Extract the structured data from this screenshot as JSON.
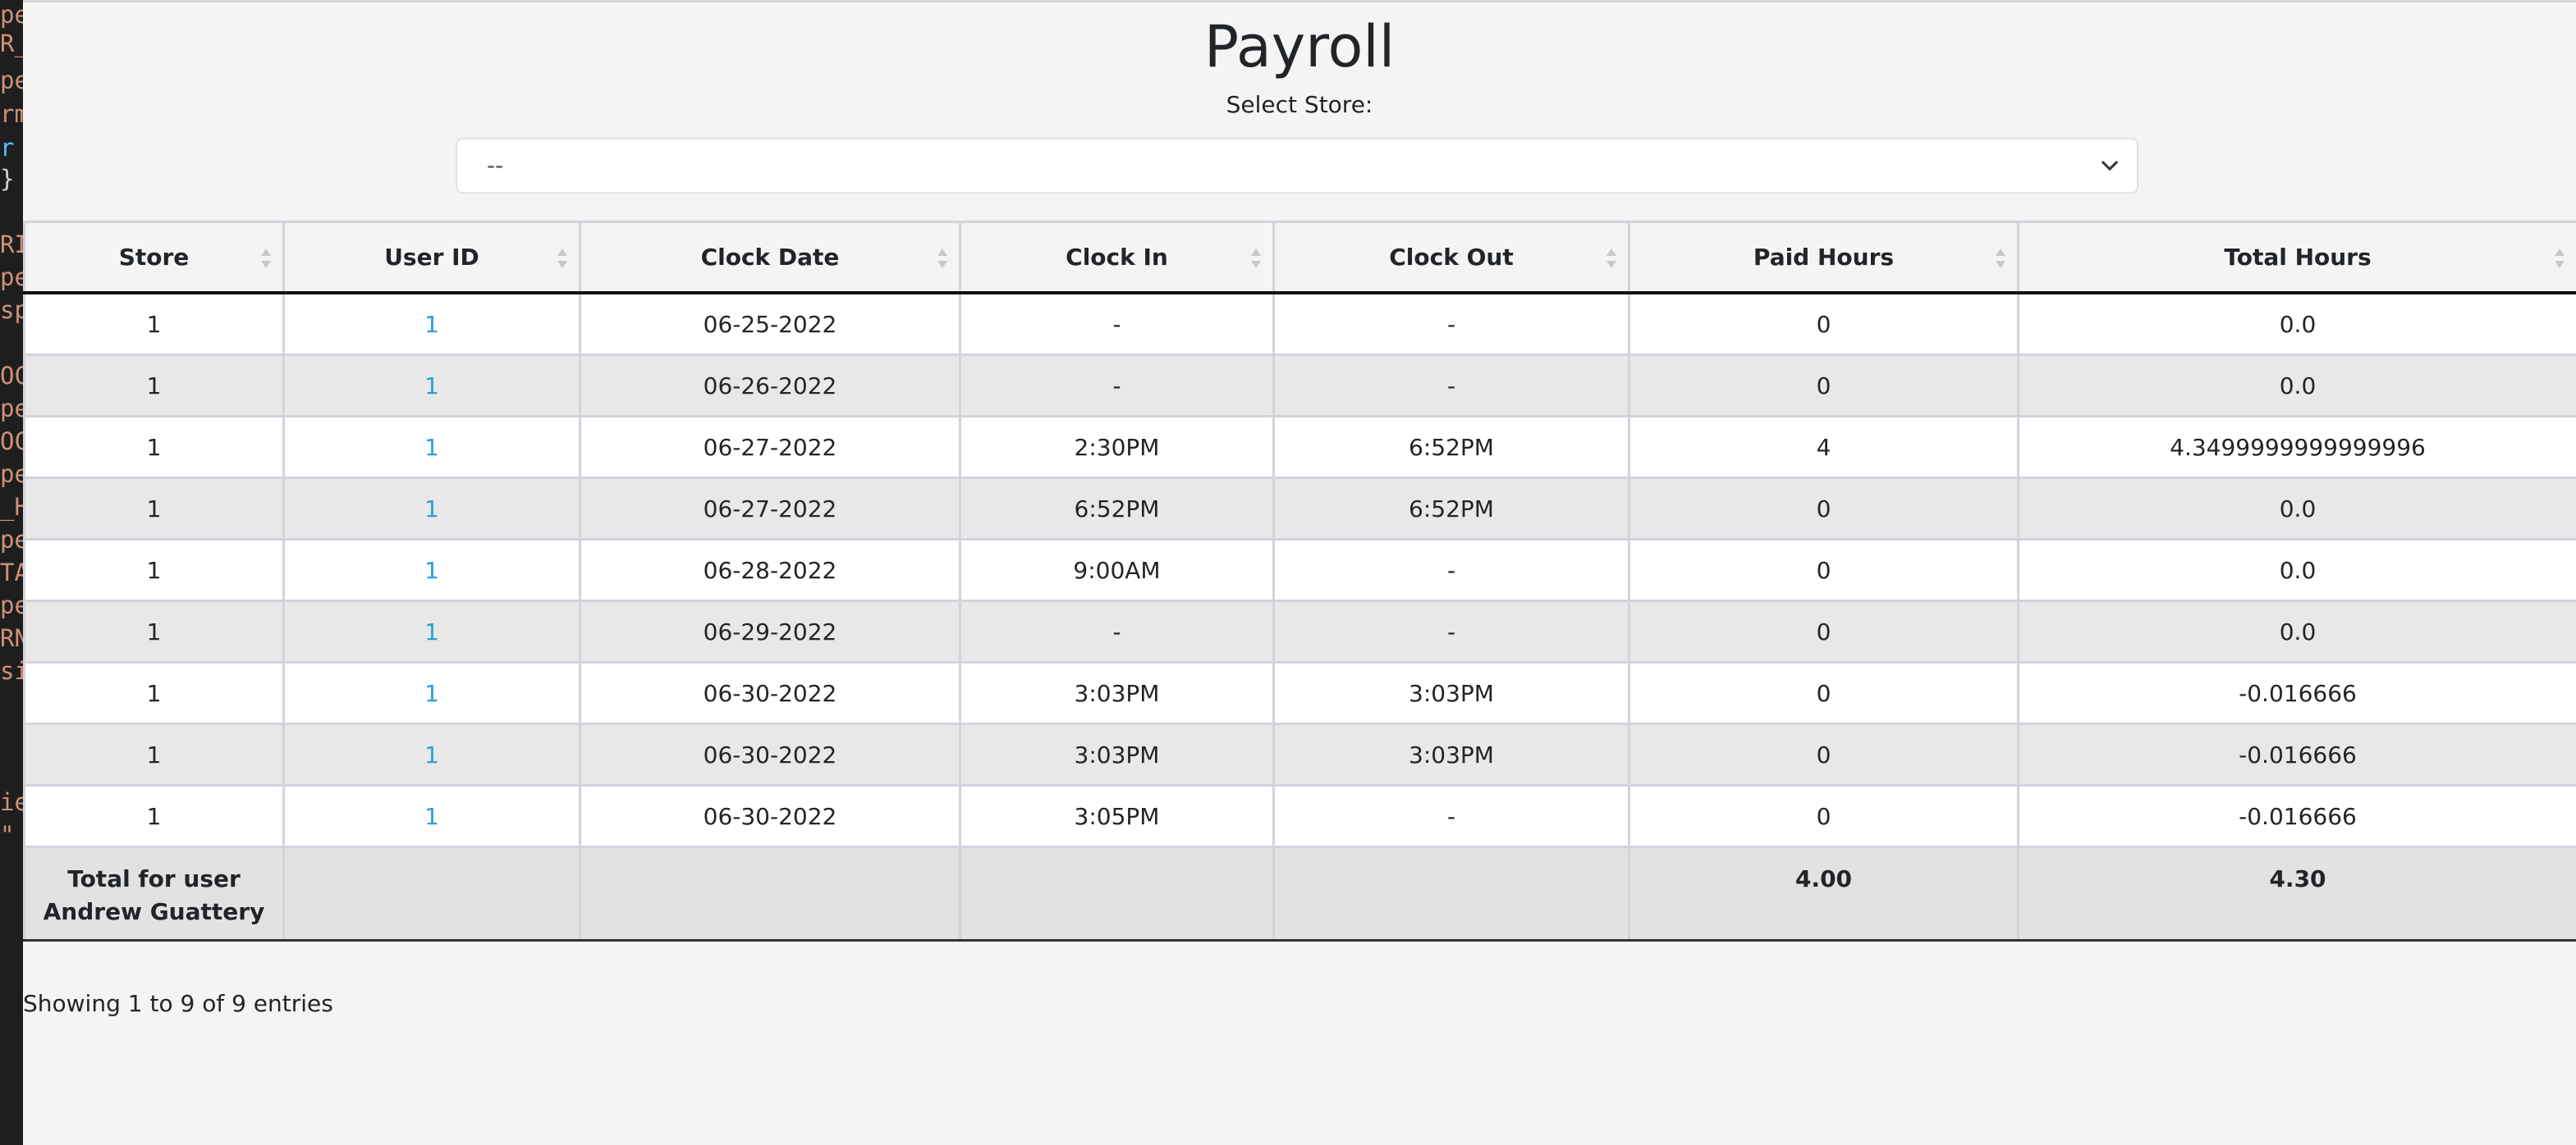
{
  "code_strip": {
    "lines": [
      {
        "text": "pe",
        "color": "#ce9178"
      },
      {
        "text": "R_",
        "color": "#ce9178"
      },
      {
        "text": "pe",
        "color": "#ce9178"
      },
      {
        "text": "rm",
        "color": "#ce9178"
      },
      {
        "text": " r",
        "color": "#4fc1ff"
      },
      {
        "text": " }",
        "color": "#d4d4d4"
      },
      {
        "text": "",
        "color": "#ce9178"
      },
      {
        "text": "RI",
        "color": "#ce9178"
      },
      {
        "text": "pe",
        "color": "#ce9178"
      },
      {
        "text": "sp",
        "color": "#ce9178"
      },
      {
        "text": "",
        "color": "#ce9178"
      },
      {
        "text": "OC",
        "color": "#ce9178"
      },
      {
        "text": "pe",
        "color": "#ce9178"
      },
      {
        "text": "OC",
        "color": "#ce9178"
      },
      {
        "text": "pe",
        "color": "#ce9178"
      },
      {
        "text": "_H",
        "color": "#ce9178"
      },
      {
        "text": "pe",
        "color": "#ce9178"
      },
      {
        "text": "TA",
        "color": "#ce9178"
      },
      {
        "text": "pe",
        "color": "#ce9178"
      },
      {
        "text": "RN",
        "color": "#ce9178"
      },
      {
        "text": "si",
        "color": "#ce9178"
      },
      {
        "text": "",
        "color": "#ce9178"
      },
      {
        "text": "",
        "color": "#ce9178"
      },
      {
        "text": "",
        "color": "#ce9178"
      },
      {
        "text": "ie",
        "color": "#ce9178"
      },
      {
        "text": " \"",
        "color": "#ce9178"
      }
    ]
  },
  "page": {
    "title": "Payroll",
    "store_label": "Select Store:",
    "store_select_value": "--"
  },
  "table": {
    "columns": [
      "Store",
      "User ID",
      "Clock Date",
      "Clock In",
      "Clock Out",
      "Paid Hours",
      "Total Hours"
    ],
    "rows": [
      {
        "store": "1",
        "user_id": "1",
        "clock_date": "06-25-2022",
        "clock_in": "-",
        "clock_out": "-",
        "paid_hours": "0",
        "total_hours": "0.0"
      },
      {
        "store": "1",
        "user_id": "1",
        "clock_date": "06-26-2022",
        "clock_in": "-",
        "clock_out": "-",
        "paid_hours": "0",
        "total_hours": "0.0"
      },
      {
        "store": "1",
        "user_id": "1",
        "clock_date": "06-27-2022",
        "clock_in": "2:30PM",
        "clock_out": "6:52PM",
        "paid_hours": "4",
        "total_hours": "4.3499999999999996"
      },
      {
        "store": "1",
        "user_id": "1",
        "clock_date": "06-27-2022",
        "clock_in": "6:52PM",
        "clock_out": "6:52PM",
        "paid_hours": "0",
        "total_hours": "0.0"
      },
      {
        "store": "1",
        "user_id": "1",
        "clock_date": "06-28-2022",
        "clock_in": "9:00AM",
        "clock_out": "-",
        "paid_hours": "0",
        "total_hours": "0.0"
      },
      {
        "store": "1",
        "user_id": "1",
        "clock_date": "06-29-2022",
        "clock_in": "-",
        "clock_out": "-",
        "paid_hours": "0",
        "total_hours": "0.0"
      },
      {
        "store": "1",
        "user_id": "1",
        "clock_date": "06-30-2022",
        "clock_in": "3:03PM",
        "clock_out": "3:03PM",
        "paid_hours": "0",
        "total_hours": "-0.016666"
      },
      {
        "store": "1",
        "user_id": "1",
        "clock_date": "06-30-2022",
        "clock_in": "3:03PM",
        "clock_out": "3:03PM",
        "paid_hours": "0",
        "total_hours": "-0.016666"
      },
      {
        "store": "1",
        "user_id": "1",
        "clock_date": "06-30-2022",
        "clock_in": "3:05PM",
        "clock_out": "-",
        "paid_hours": "0",
        "total_hours": "-0.016666"
      }
    ],
    "footer": {
      "label_line1": "Total for user",
      "label_line2": "Andrew Guattery",
      "paid_hours_total": "4.00",
      "total_hours_total": "4.30"
    }
  },
  "info_text": "Showing 1 to 9 of 9 entries",
  "colors": {
    "link": "#2a9fd8",
    "odd_row": "#ffffff",
    "even_row": "#e8e8e8",
    "footer_row": "#e2e2e2",
    "background": "#f4f4f4"
  }
}
